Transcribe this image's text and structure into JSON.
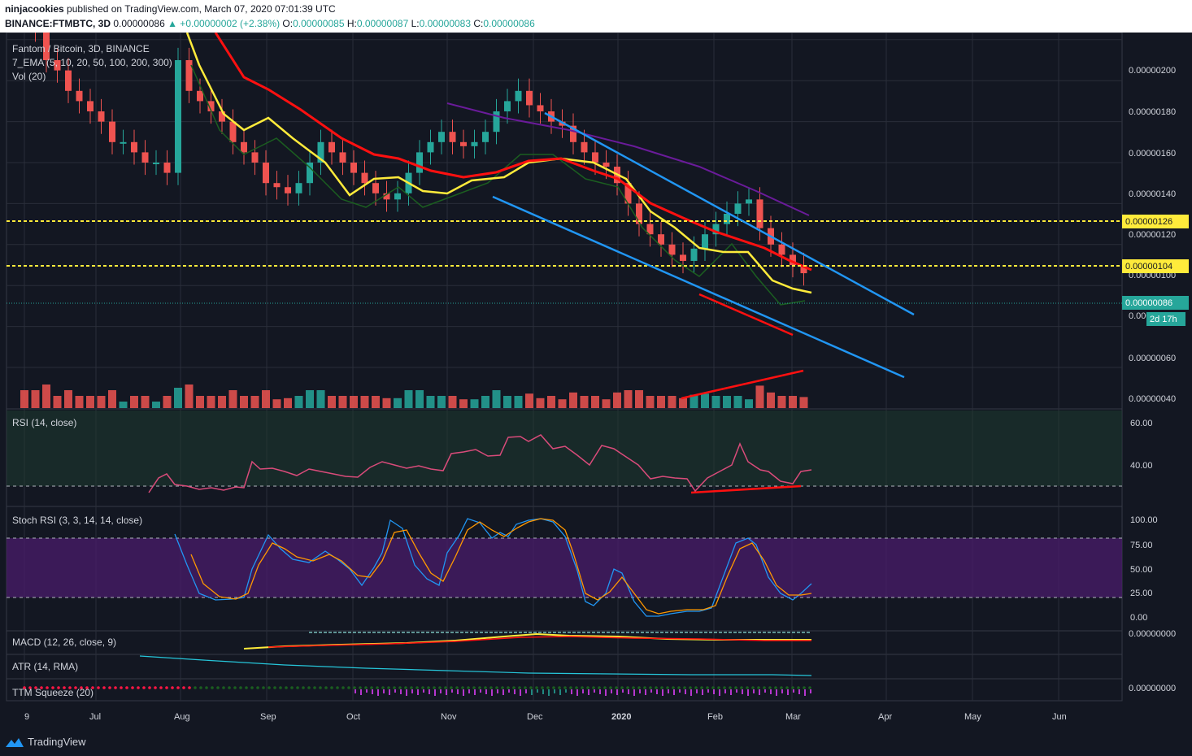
{
  "header": {
    "publisher": "ninjacookies",
    "published_text": "published on TradingView.com, March 07, 2020 07:01:39 UTC",
    "symbol": "BINANCE:FTMBTC, 3D",
    "last": "0.00000086",
    "change": "▲ +0.00000002 (+2.38%)",
    "o_label": "O:",
    "o_value": "0.00000085",
    "h_label": "H:",
    "h_value": "0.00000087",
    "l_label": "L:",
    "l_value": "0.00000083",
    "c_label": "C:",
    "c_value": "0.00000086"
  },
  "legend": {
    "title": "Fantom / Bitcoin, 3D, BINANCE",
    "ema": "7_EMA (5, 10, 20, 50, 100, 200, 300)",
    "vol": "Vol (20)"
  },
  "price_axis": {
    "ticks": [
      "0.00000200",
      "0.00000180",
      "0.00000160",
      "0.00000140",
      "0.00000120",
      "0.00000100",
      "0.00000080",
      "0.00000060",
      "0.00000040"
    ],
    "tick_values": [
      200,
      180,
      160,
      140,
      120,
      100,
      80,
      60,
      40
    ],
    "unit_scale": "1e-8",
    "hline_upper": "0.00000126",
    "hline_lower": "0.00000104",
    "last_price": "0.00000086",
    "countdown": "2d 17h"
  },
  "time_axis": [
    "9",
    "Jul",
    "Aug",
    "Sep",
    "Oct",
    "Nov",
    "Dec",
    "2020",
    "Feb",
    "Mar",
    "Apr",
    "May",
    "Jun"
  ],
  "panes": {
    "rsi": {
      "label": "RSI (14, close)",
      "ticks": [
        "60.00",
        "40.00"
      ]
    },
    "stoch": {
      "label": "Stoch RSI (3, 3, 14, 14, close)",
      "ticks": [
        "100.00",
        "75.00",
        "50.00",
        "25.00",
        "0.00"
      ]
    },
    "macd": {
      "label": "MACD (12, 26, close, 9)",
      "ticks": [
        "0.00000000"
      ]
    },
    "atr": {
      "label": "ATR (14, RMA)"
    },
    "ttm": {
      "label": "TTM Squeeze (20)",
      "ticks": [
        "0.00000000"
      ]
    }
  },
  "footer": {
    "brand": "TradingView"
  },
  "colors": {
    "bg": "#131722",
    "up": "#26a69a",
    "down": "#ef5350",
    "ema_yellow": "#ffeb3b",
    "ema_red": "#ff1010",
    "channel": "#2196f3",
    "purple": "#7e57c2"
  },
  "chart_data": {
    "type": "candlestick",
    "x_unit": "3-day candles, Jun 2019 - Mar 2020",
    "price_unit": "BTC",
    "close_last": 8.6e-07,
    "horizontal_levels": [
      1.26e-06,
      1.04e-06
    ],
    "candles_approx_close_x1e8": [
      215,
      205,
      190,
      185,
      175,
      170,
      165,
      160,
      150,
      150,
      145,
      140,
      140,
      135,
      190,
      175,
      170,
      165,
      160,
      150,
      145,
      140,
      130,
      128,
      125,
      130,
      140,
      150,
      145,
      140,
      135,
      130,
      125,
      122,
      125,
      135,
      145,
      150,
      155,
      150,
      148,
      150,
      155,
      165,
      170,
      175,
      168,
      165,
      160,
      158,
      150,
      145,
      140,
      138,
      130,
      120,
      110,
      105,
      100,
      95,
      92,
      98,
      105,
      110,
      115,
      120,
      122,
      108,
      100,
      95,
      90,
      86
    ]
  }
}
